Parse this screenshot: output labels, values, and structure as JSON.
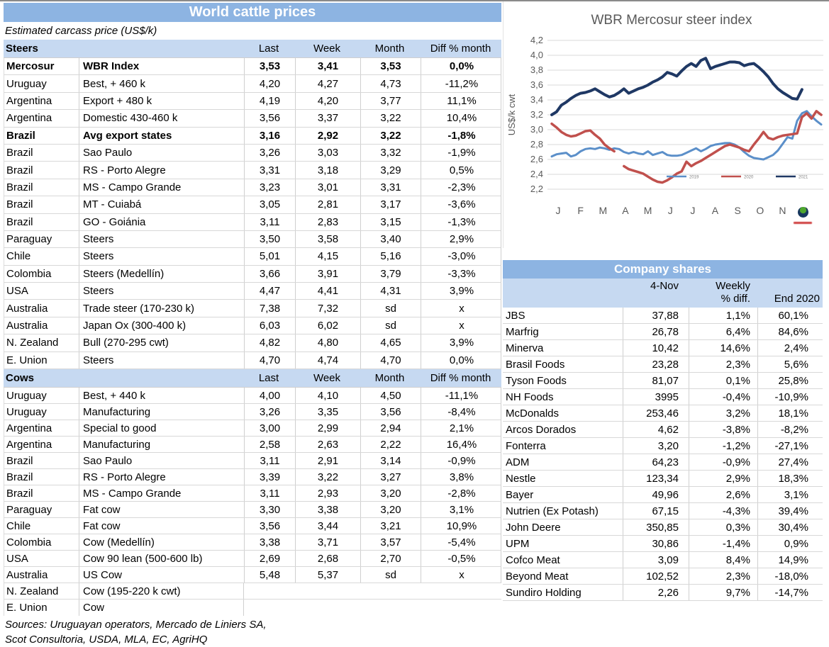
{
  "colors": {
    "title_band": "#8DB4E2",
    "header_band": "#C6D9F1",
    "series_2019": "#5B8FC9",
    "series_2020": "#C0504D",
    "series_2021": "#1F3864"
  },
  "main_table": {
    "title": "World cattle prices",
    "subtitle": "Estimated carcass price (US$/k)",
    "columns": [
      "Last",
      "Week",
      "Month",
      "Diff % month"
    ],
    "sections": [
      {
        "label": "Steers",
        "rows": [
          {
            "country": "Mercosur",
            "desc": "WBR Index",
            "last": "3,53",
            "week": "3,41",
            "month": "3,53",
            "diff": "0,0%",
            "bold": true
          },
          {
            "country": "Uruguay",
            "desc": "Best, + 460 k",
            "last": "4,20",
            "week": "4,27",
            "month": "4,73",
            "diff": "-11,2%"
          },
          {
            "country": "Argentina",
            "desc": "Export + 480 k",
            "last": "4,19",
            "week": "4,20",
            "month": "3,77",
            "diff": "11,1%"
          },
          {
            "country": "Argentina",
            "desc": "Domestic 430-460 k",
            "last": "3,56",
            "week": "3,37",
            "month": "3,22",
            "diff": "10,4%"
          },
          {
            "country": "Brazil",
            "desc": "Avg export states",
            "last": "3,16",
            "week": "2,92",
            "month": "3,22",
            "diff": "-1,8%",
            "bold": true
          },
          {
            "country": "Brazil",
            "desc": "Sao Paulo",
            "last": "3,26",
            "week": "3,03",
            "month": "3,32",
            "diff": "-1,9%"
          },
          {
            "country": "Brazil",
            "desc": "RS - Porto Alegre",
            "last": "3,31",
            "week": "3,18",
            "month": "3,29",
            "diff": "0,5%"
          },
          {
            "country": "Brazil",
            "desc": "MS - Campo Grande",
            "last": "3,23",
            "week": "3,01",
            "month": "3,31",
            "diff": "-2,3%"
          },
          {
            "country": "Brazil",
            "desc": "MT - Cuiabá",
            "last": "3,05",
            "week": "2,81",
            "month": "3,17",
            "diff": "-3,6%"
          },
          {
            "country": "Brazil",
            "desc": "GO - Goiánia",
            "last": "3,11",
            "week": "2,83",
            "month": "3,15",
            "diff": "-1,3%"
          },
          {
            "country": "Paraguay",
            "desc": "Steers",
            "last": "3,50",
            "week": "3,58",
            "month": "3,40",
            "diff": "2,9%"
          },
          {
            "country": "Chile",
            "desc": "Steers",
            "last": "5,01",
            "week": "4,15",
            "month": "5,16",
            "diff": "-3,0%"
          },
          {
            "country": "Colombia",
            "desc": "Steers (Medellín)",
            "last": "3,66",
            "week": "3,91",
            "month": "3,79",
            "diff": "-3,3%"
          },
          {
            "country": "USA",
            "desc": "Steers",
            "last": "4,47",
            "week": "4,41",
            "month": "4,31",
            "diff": "3,9%"
          },
          {
            "country": "Australia",
            "desc": "Trade steer (170-230 k)",
            "last": "7,38",
            "week": "7,32",
            "month": "sd",
            "diff": "x"
          },
          {
            "country": "Australia",
            "desc": "Japan Ox (300-400 k)",
            "last": "6,03",
            "week": "6,02",
            "month": "sd",
            "diff": "x"
          },
          {
            "country": "N. Zealand",
            "desc": "Bull (270-295 cwt)",
            "last": "4,82",
            "week": "4,80",
            "month": "4,65",
            "diff": "3,9%"
          },
          {
            "country": "E. Union",
            "desc": "Steers",
            "last": "4,70",
            "week": "4,74",
            "month": "4,70",
            "diff": "0,0%"
          }
        ]
      },
      {
        "label": "Cows",
        "rows": [
          {
            "country": "Uruguay",
            "desc": "Best, + 440 k",
            "last": "4,00",
            "week": "4,10",
            "month": "4,50",
            "diff": "-11,1%"
          },
          {
            "country": "Uruguay",
            "desc": "Manufacturing",
            "last": "3,26",
            "week": "3,35",
            "month": "3,56",
            "diff": "-8,4%"
          },
          {
            "country": "Argentina",
            "desc": "Special to good",
            "last": "3,00",
            "week": "2,99",
            "month": "2,94",
            "diff": "2,1%"
          },
          {
            "country": "Argentina",
            "desc": "Manufacturing",
            "last": "2,58",
            "week": "2,63",
            "month": "2,22",
            "diff": "16,4%"
          },
          {
            "country": "Brazil",
            "desc": "Sao Paulo",
            "last": "3,11",
            "week": "2,91",
            "month": "3,14",
            "diff": "-0,9%"
          },
          {
            "country": "Brazil",
            "desc": "RS - Porto Alegre",
            "last": "3,39",
            "week": "3,22",
            "month": "3,27",
            "diff": "3,8%"
          },
          {
            "country": "Brazil",
            "desc": "MS - Campo Grande",
            "last": "3,11",
            "week": "2,93",
            "month": "3,20",
            "diff": "-2,8%"
          },
          {
            "country": "Paraguay",
            "desc": "Fat cow",
            "last": "3,30",
            "week": "3,38",
            "month": "3,20",
            "diff": "3,1%"
          },
          {
            "country": "Chile",
            "desc": "Fat cow",
            "last": "3,56",
            "week": "3,44",
            "month": "3,21",
            "diff": "10,9%"
          },
          {
            "country": "Colombia",
            "desc": "Cow (Medellín)",
            "last": "3,38",
            "week": "3,71",
            "month": "3,57",
            "diff": "-5,4%"
          },
          {
            "country": "USA",
            "desc": "Cow 90 lean (500-600 lb)",
            "last": "2,69",
            "week": "2,68",
            "month": "2,70",
            "diff": "-0,5%"
          },
          {
            "country": "Australia",
            "desc": "US Cow",
            "last": "5,48",
            "week": "5,37",
            "month": "sd",
            "diff": "x"
          },
          {
            "country": "N. Zealand",
            "desc": "Cow (195-220 k cwt)",
            "partial": true,
            "pborder": true
          },
          {
            "country": "E. Union",
            "desc": "Cow",
            "partial": true
          }
        ]
      }
    ],
    "sources": [
      "Sources: Uruguayan operators, Mercado de Liniers SA,",
      "Scot Consultoria, USDA, MLA, EC, AgriHQ"
    ]
  },
  "chart_data": {
    "type": "line",
    "title": "WBR Mercosur steer index",
    "ylabel": "US$/k cwt",
    "ylim": [
      2.2,
      4.2
    ],
    "ytick_step": 0.2,
    "x_labels": [
      "J",
      "F",
      "M",
      "A",
      "M",
      "J",
      "J",
      "A",
      "S",
      "O",
      "N",
      "D"
    ],
    "grid": true,
    "legend_position": "inside-lower-right",
    "series": [
      {
        "name": "2019",
        "color": "#5B8FC9",
        "width": 3,
        "values": [
          2.64,
          2.67,
          2.68,
          2.69,
          2.64,
          2.66,
          2.71,
          2.74,
          2.75,
          2.74,
          2.76,
          2.75,
          2.73,
          2.75,
          2.74,
          2.7,
          2.68,
          2.7,
          2.68,
          2.67,
          2.71,
          2.66,
          2.68,
          2.7,
          2.66,
          2.65,
          2.65,
          2.66,
          2.69,
          2.72,
          2.75,
          2.71,
          2.74,
          2.78,
          2.8,
          2.81,
          2.82,
          2.82,
          2.8,
          2.76,
          2.7,
          2.65,
          2.62,
          2.61,
          2.6,
          2.63,
          2.66,
          2.72,
          2.81,
          2.9,
          2.88,
          3.12,
          3.22,
          3.25,
          3.18,
          3.12,
          3.07
        ]
      },
      {
        "name": "2020",
        "color": "#C0504D",
        "width": 3.5,
        "values": [
          3.08,
          3.03,
          2.97,
          2.93,
          2.91,
          2.92,
          2.95,
          2.98,
          2.99,
          2.93,
          2.88,
          2.8,
          2.75,
          2.71,
          null,
          2.51,
          2.47,
          2.45,
          2.43,
          2.41,
          2.37,
          2.33,
          2.3,
          2.29,
          2.32,
          2.36,
          2.41,
          2.44,
          2.57,
          2.51,
          2.55,
          2.58,
          2.62,
          2.66,
          2.7,
          2.74,
          2.78,
          2.8,
          2.78,
          2.76,
          2.73,
          2.71,
          2.8,
          2.88,
          2.97,
          2.89,
          2.87,
          2.9,
          2.92,
          2.93,
          2.94,
          2.95,
          3.17,
          3.22,
          3.15,
          3.25,
          3.2
        ]
      },
      {
        "name": "2021",
        "color": "#1F3864",
        "width": 4,
        "values": [
          3.2,
          3.24,
          3.33,
          3.37,
          3.42,
          3.46,
          3.49,
          3.5,
          3.52,
          3.55,
          3.51,
          3.47,
          3.44,
          3.46,
          3.5,
          3.55,
          3.49,
          3.52,
          3.55,
          3.57,
          3.6,
          3.64,
          3.67,
          3.71,
          3.77,
          3.75,
          3.72,
          3.79,
          3.85,
          3.89,
          3.85,
          3.93,
          3.96,
          3.82,
          3.85,
          3.87,
          3.89,
          3.91,
          3.91,
          3.9,
          3.86,
          3.88,
          3.89,
          3.84,
          3.78,
          3.71,
          3.62,
          3.55,
          3.5,
          3.46,
          3.42,
          3.41,
          3.54,
          null,
          null,
          null,
          null
        ]
      }
    ]
  },
  "company_table": {
    "title": "Company shares",
    "headers": {
      "date": "4-Nov",
      "weekly_line1": "Weekly",
      "weekly_line2": "% diff.",
      "end": "End 2020"
    },
    "rows": [
      {
        "name": "JBS",
        "price": "37,88",
        "weekly": "1,1%",
        "end2020": "60,1%"
      },
      {
        "name": "Marfrig",
        "price": "26,78",
        "weekly": "6,4%",
        "end2020": "84,6%"
      },
      {
        "name": "Minerva",
        "price": "10,42",
        "weekly": "14,6%",
        "end2020": "2,4%"
      },
      {
        "name": "Brasil Foods",
        "price": "23,28",
        "weekly": "2,3%",
        "end2020": "5,6%"
      },
      {
        "name": "Tyson Foods",
        "price": "81,07",
        "weekly": "0,1%",
        "end2020": "25,8%"
      },
      {
        "name": "NH Foods",
        "price": "3995",
        "weekly": "-0,4%",
        "end2020": "-10,9%"
      },
      {
        "name": "McDonalds",
        "price": "253,46",
        "weekly": "3,2%",
        "end2020": "18,1%"
      },
      {
        "name": "Arcos Dorados",
        "price": "4,62",
        "weekly": "-3,8%",
        "end2020": "-8,2%"
      },
      {
        "name": "Fonterra",
        "price": "3,20",
        "weekly": "-1,2%",
        "end2020": "-27,1%"
      },
      {
        "name": "ADM",
        "price": "64,23",
        "weekly": "-0,9%",
        "end2020": "27,4%"
      },
      {
        "name": "Nestle",
        "price": "123,34",
        "weekly": "2,9%",
        "end2020": "18,3%"
      },
      {
        "name": "Bayer",
        "price": "49,96",
        "weekly": "2,6%",
        "end2020": "3,1%"
      },
      {
        "name": "Nutrien (Ex Potash)",
        "price": "67,15",
        "weekly": "-4,3%",
        "end2020": "39,4%"
      },
      {
        "name": "John Deere",
        "price": "350,85",
        "weekly": "0,3%",
        "end2020": "30,4%"
      },
      {
        "name": "UPM",
        "price": "30,86",
        "weekly": "-1,4%",
        "end2020": "0,9%"
      },
      {
        "name": "Cofco Meat",
        "price": "3,09",
        "weekly": "8,4%",
        "end2020": "14,9%"
      },
      {
        "name": "Beyond Meat",
        "price": "102,52",
        "weekly": "2,3%",
        "end2020": "-18,0%"
      },
      {
        "name": "Sundiro Holding",
        "price": "2,26",
        "weekly": "9,7%",
        "end2020": "-14,7%"
      }
    ]
  }
}
